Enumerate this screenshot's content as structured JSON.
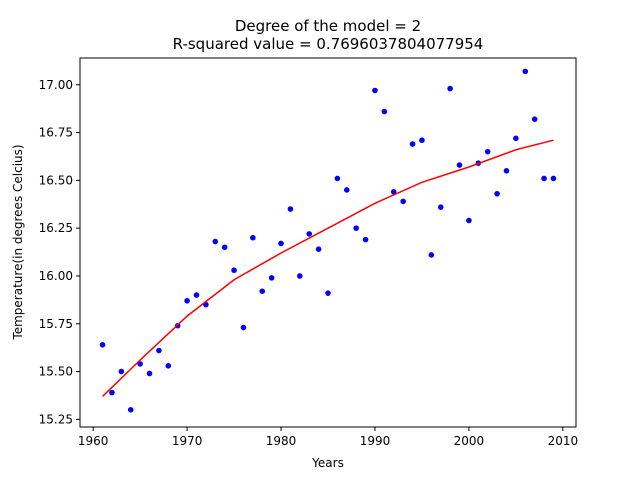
{
  "chart_data": {
    "type": "scatter",
    "title": "Degree of the model = 2",
    "subtitle": "R-squared value = 0.7696037804077954",
    "xlabel": "Years",
    "ylabel": "Temperature(in degrees Celcius)",
    "xlim": [
      1958.6,
      2011.4
    ],
    "ylim": [
      15.21,
      17.14
    ],
    "xticks": [
      "1960",
      "1970",
      "1980",
      "1990",
      "2000",
      "2010"
    ],
    "yticks": [
      "15.25",
      "15.50",
      "15.75",
      "16.00",
      "16.25",
      "16.50",
      "16.75",
      "17.00"
    ],
    "grid": false,
    "series": [
      {
        "kind": "points",
        "color": "#0000ff",
        "x": [
          1961,
          1962,
          1963,
          1964,
          1965,
          1966,
          1967,
          1968,
          1969,
          1970,
          1971,
          1972,
          1973,
          1974,
          1975,
          1976,
          1977,
          1978,
          1979,
          1980,
          1981,
          1982,
          1983,
          1984,
          1985,
          1986,
          1987,
          1988,
          1989,
          1990,
          1991,
          1992,
          1993,
          1994,
          1995,
          1996,
          1997,
          1998,
          1999,
          2000,
          2001,
          2002,
          2003,
          2004,
          2005,
          2006,
          2007,
          2008,
          2009
        ],
        "y": [
          15.64,
          15.39,
          15.5,
          15.3,
          15.54,
          15.49,
          15.61,
          15.53,
          15.74,
          15.87,
          15.9,
          15.85,
          16.18,
          16.15,
          16.03,
          15.73,
          16.2,
          15.92,
          15.99,
          16.17,
          16.35,
          16.0,
          16.22,
          16.14,
          15.91,
          16.51,
          16.45,
          16.25,
          16.19,
          16.97,
          16.86,
          16.44,
          16.39,
          16.69,
          16.71,
          16.11,
          16.36,
          16.98,
          16.58,
          16.29,
          16.59,
          16.65,
          16.43,
          16.55,
          16.72,
          17.07,
          16.82,
          16.51,
          16.51
        ]
      },
      {
        "kind": "line",
        "color": "#ff0000",
        "x": [
          1961,
          1965,
          1970,
          1975,
          1980,
          1985,
          1990,
          1995,
          2000,
          2005,
          2009
        ],
        "y": [
          15.37,
          15.56,
          15.79,
          15.98,
          16.12,
          16.25,
          16.38,
          16.49,
          16.57,
          16.66,
          16.71
        ]
      }
    ]
  }
}
